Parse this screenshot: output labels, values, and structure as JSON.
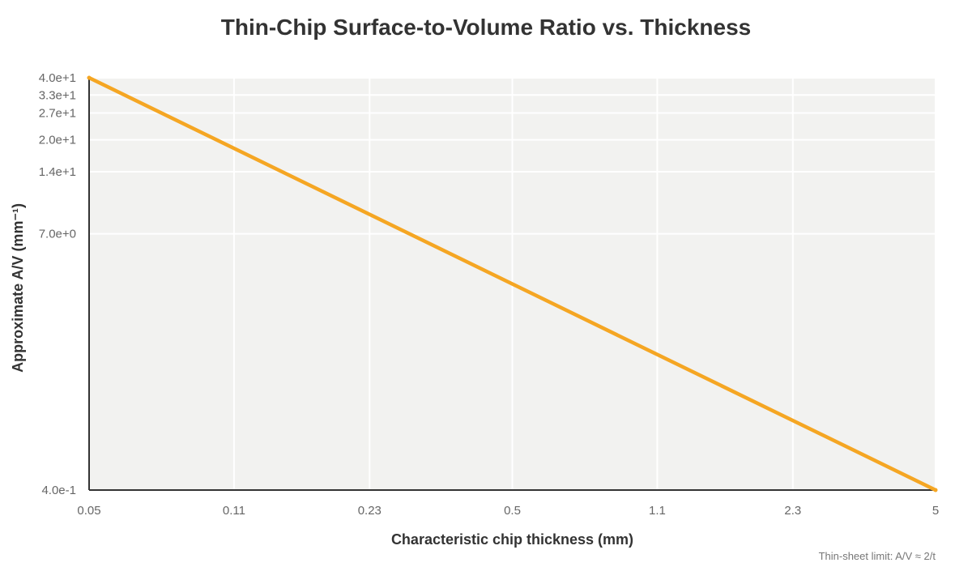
{
  "chart_data": {
    "type": "line",
    "title": "Thin-Chip Surface-to-Volume Ratio vs. Thickness",
    "xlabel": "Characteristic chip thickness (mm)",
    "ylabel": "Approximate A/V (mm⁻¹)",
    "x_scale": "log",
    "y_scale": "log",
    "xlim": [
      0.05,
      5
    ],
    "ylim": [
      0.4,
      40
    ],
    "x_ticks": [
      "0.05",
      "0.11",
      "0.23",
      "0.5",
      "1.1",
      "2.3",
      "5"
    ],
    "y_ticks": [
      "4.0e+1",
      "3.3e+1",
      "2.7e+1",
      "2.0e+1",
      "1.4e+1",
      "7.0e+0",
      "4.0e-1"
    ],
    "grid": true,
    "series": [
      {
        "x": [
          0.05,
          5
        ],
        "y": [
          40,
          0.4
        ],
        "color": "#f5a623"
      }
    ],
    "annotation": "Thin-sheet limit: A/V ≈ 2/t"
  },
  "colors": {
    "plot_background": "#f2f2f0",
    "grid": "#ffffff",
    "axis": "#333333",
    "line": "#f5a623"
  }
}
